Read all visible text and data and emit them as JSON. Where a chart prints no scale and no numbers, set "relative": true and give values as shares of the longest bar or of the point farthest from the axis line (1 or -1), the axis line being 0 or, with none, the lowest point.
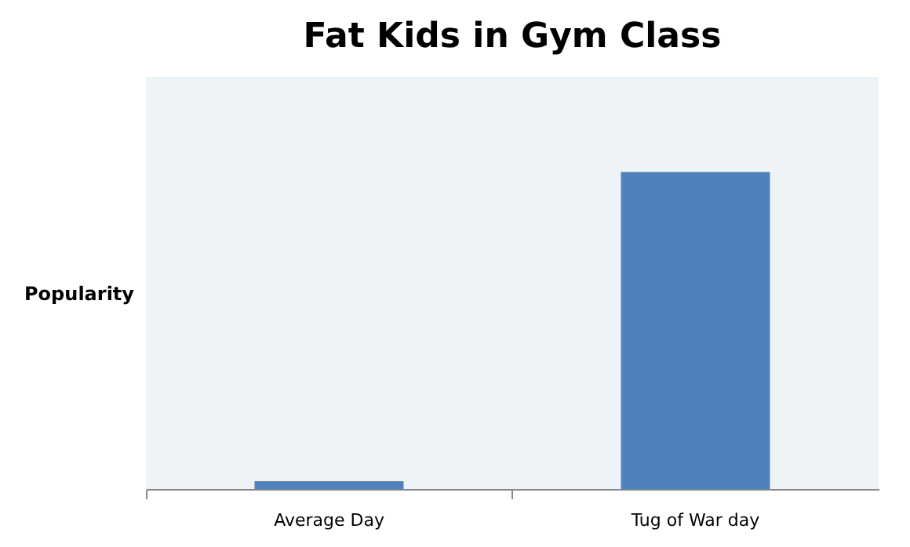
{
  "chart_data": {
    "type": "bar",
    "title": "Fat Kids in Gym Class",
    "ylabel": "Popularity",
    "categories": [
      "Average Day",
      "Tug of War day"
    ],
    "values": [
      0.025,
      1
    ],
    "color": "#4f81bd",
    "relative": true,
    "grid": false
  }
}
